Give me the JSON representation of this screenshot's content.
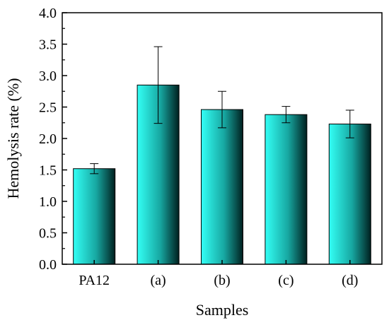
{
  "chart_data": {
    "type": "bar",
    "xlabel": "Samples",
    "ylabel": "Hemolysis rate (%)",
    "ylim": [
      0.0,
      4.0
    ],
    "yticks": [
      "0.0",
      "0.5",
      "1.0",
      "1.5",
      "2.0",
      "2.5",
      "3.0",
      "3.5",
      "4.0"
    ],
    "categories": [
      "PA12",
      "(a)",
      "(b)",
      "(c)",
      "(d)"
    ],
    "values": [
      1.52,
      2.85,
      2.46,
      2.38,
      2.23
    ],
    "error": [
      0.08,
      0.61,
      0.29,
      0.13,
      0.22
    ],
    "grid": false,
    "legend": "none",
    "colors": {
      "bar_light": "#33FFF5",
      "bar_mid": "#17A7A1",
      "bar_dark": "#00201F",
      "axis": "#000000"
    }
  }
}
